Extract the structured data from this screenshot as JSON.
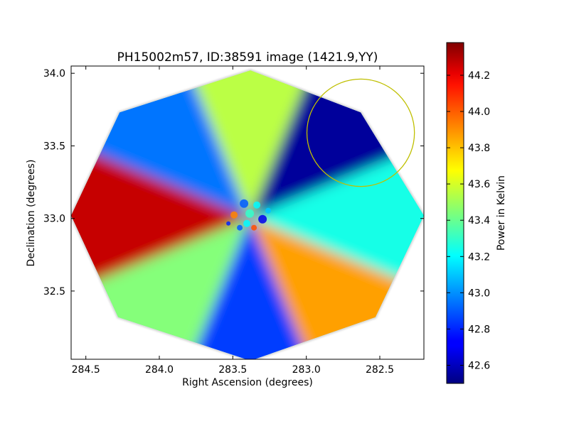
{
  "chart_data": {
    "type": "heatmap",
    "title": "PH15002m57, ID:38591 image (1421.9,YY)",
    "xlabel": "Right Ascension (degrees)",
    "ylabel": "Declination (degrees)",
    "xlim": [
      284.6,
      282.2
    ],
    "ylim": [
      32.03,
      34.05
    ],
    "x_ticks": [
      {
        "value": 284.5,
        "label": "284.5"
      },
      {
        "value": 284.0,
        "label": "284.0"
      },
      {
        "value": 283.5,
        "label": "283.5"
      },
      {
        "value": 283.0,
        "label": "283.0"
      },
      {
        "value": 282.5,
        "label": "282.5"
      }
    ],
    "y_ticks": [
      {
        "value": 34.0,
        "label": "34.0"
      },
      {
        "value": 33.5,
        "label": "33.5"
      },
      {
        "value": 33.0,
        "label": "33.0"
      },
      {
        "value": 32.5,
        "label": "32.5"
      }
    ],
    "colorbar": {
      "label": "Power in Kelvin",
      "range": [
        42.5,
        44.38
      ],
      "colormap": "jet",
      "ticks": [
        {
          "value": 42.6,
          "label": "42.6"
        },
        {
          "value": 42.8,
          "label": "42.8"
        },
        {
          "value": 43.0,
          "label": "43.0"
        },
        {
          "value": 43.2,
          "label": "43.2"
        },
        {
          "value": 43.4,
          "label": "43.4"
        },
        {
          "value": 43.6,
          "label": "43.6"
        },
        {
          "value": 43.8,
          "label": "43.8"
        },
        {
          "value": 44.0,
          "label": "44.0"
        },
        {
          "value": 44.2,
          "label": "44.2"
        }
      ]
    },
    "footprint": {
      "shape": "octagon",
      "center_ra": 283.385,
      "center_dec": 33.005,
      "vertices": [
        {
          "ra": 283.38,
          "dec": 34.02
        },
        {
          "ra": 282.63,
          "dec": 33.73
        },
        {
          "ra": 282.2,
          "dec": 33.02
        },
        {
          "ra": 282.53,
          "dec": 32.32
        },
        {
          "ra": 283.38,
          "dec": 32.02
        },
        {
          "ra": 284.28,
          "dec": 32.32
        },
        {
          "ra": 284.6,
          "dec": 33.02
        },
        {
          "ra": 284.27,
          "dec": 33.73
        }
      ]
    },
    "lobes": [
      {
        "direction": "up",
        "angle_deg": -90,
        "value": 43.55
      },
      {
        "direction": "upper-right",
        "angle_deg": -45,
        "value": 42.55
      },
      {
        "direction": "right",
        "angle_deg": 0,
        "value": 43.25
      },
      {
        "direction": "lower-right",
        "angle_deg": 45,
        "value": 43.85
      },
      {
        "direction": "down",
        "angle_deg": 90,
        "value": 42.85
      },
      {
        "direction": "lower-left",
        "angle_deg": 135,
        "value": 43.45
      },
      {
        "direction": "left",
        "angle_deg": 180,
        "value": 44.25
      },
      {
        "direction": "upper-left",
        "angle_deg": 225,
        "value": 42.95
      }
    ],
    "background_value": 43.3,
    "annotation": {
      "type": "circle",
      "center_ra": 282.63,
      "center_dec": 33.59,
      "radius_deg": 0.37,
      "color": "#bfbf00"
    }
  }
}
